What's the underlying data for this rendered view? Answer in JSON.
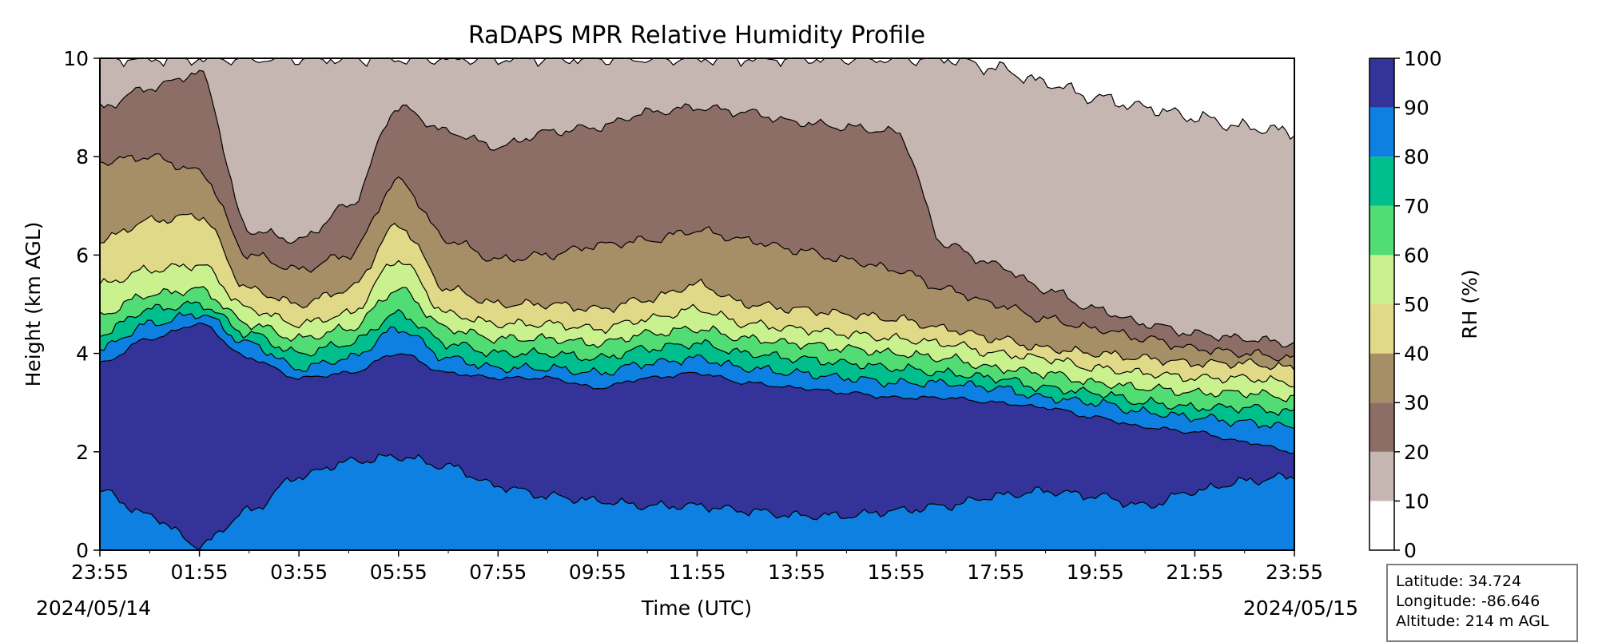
{
  "chart_data": {
    "type": "heatmap",
    "title": "RaDAPS MPR Relative Humidity Profile",
    "xlabel": "Time (UTC)",
    "ylabel": "Height (km AGL)",
    "x_ticks": [
      "23:55",
      "01:55",
      "03:55",
      "05:55",
      "07:55",
      "09:55",
      "11:55",
      "13:55",
      "15:55",
      "17:55",
      "19:55",
      "21:55",
      "23:55"
    ],
    "x_hours_per_major_tick": 2,
    "x_range_hours": [
      0,
      24
    ],
    "start_date": "2024/05/14",
    "end_date": "2024/05/15",
    "y_ticks": [
      0,
      2,
      4,
      6,
      8,
      10
    ],
    "ylim": [
      0,
      10
    ],
    "colorbar": {
      "label": "RH (%)",
      "ticks": [
        0,
        10,
        20,
        30,
        40,
        50,
        60,
        70,
        80,
        90,
        100
      ],
      "levels": [
        {
          "range": [
            0,
            10
          ],
          "color": "#ffffff"
        },
        {
          "range": [
            10,
            20
          ],
          "color": "#c6b6b2"
        },
        {
          "range": [
            20,
            30
          ],
          "color": "#8d6e66"
        },
        {
          "range": [
            30,
            40
          ],
          "color": "#a68f66"
        },
        {
          "range": [
            40,
            50
          ],
          "color": "#e0da88"
        },
        {
          "range": [
            50,
            60
          ],
          "color": "#c9f28e"
        },
        {
          "range": [
            60,
            70
          ],
          "color": "#51dc74"
        },
        {
          "range": [
            70,
            80
          ],
          "color": "#00bf8c"
        },
        {
          "range": [
            80,
            90
          ],
          "color": "#0d80e2"
        },
        {
          "range": [
            90,
            100
          ],
          "color": "#333399"
        }
      ]
    },
    "contour_tops_km": {
      "hours": [
        0,
        1,
        2,
        3,
        4,
        5,
        6,
        7,
        8,
        9,
        10,
        11,
        12,
        13,
        14,
        15,
        16,
        17,
        18,
        19,
        20,
        21,
        22,
        23,
        24
      ],
      "levels": [
        {
          "rh_above": 90,
          "tops": [
            3.8,
            4.3,
            4.6,
            3.9,
            3.5,
            3.6,
            4.0,
            3.6,
            3.5,
            3.5,
            3.3,
            3.5,
            3.6,
            3.4,
            3.3,
            3.2,
            3.1,
            3.1,
            3.0,
            2.9,
            2.7,
            2.5,
            2.4,
            2.2,
            2.0
          ]
        },
        {
          "rh_above": 80,
          "tops": [
            4.1,
            4.6,
            4.8,
            4.2,
            3.7,
            3.9,
            4.5,
            3.9,
            3.7,
            3.7,
            3.6,
            3.8,
            3.9,
            3.7,
            3.6,
            3.5,
            3.4,
            3.4,
            3.3,
            3.1,
            3.0,
            2.8,
            2.7,
            2.6,
            2.5
          ]
        },
        {
          "rh_above": 70,
          "tops": [
            4.4,
            4.9,
            5.0,
            4.4,
            4.0,
            4.2,
            4.8,
            4.2,
            4.0,
            4.0,
            3.9,
            4.1,
            4.2,
            4.0,
            3.9,
            3.8,
            3.7,
            3.6,
            3.5,
            3.3,
            3.2,
            3.0,
            2.9,
            2.9,
            2.8
          ]
        },
        {
          "rh_above": 60,
          "tops": [
            4.8,
            5.2,
            5.3,
            4.6,
            4.3,
            4.5,
            5.3,
            4.5,
            4.3,
            4.3,
            4.2,
            4.4,
            4.5,
            4.3,
            4.2,
            4.1,
            4.0,
            3.9,
            3.7,
            3.6,
            3.4,
            3.3,
            3.2,
            3.2,
            3.1
          ]
        },
        {
          "rh_above": 50,
          "tops": [
            5.4,
            5.7,
            5.8,
            4.9,
            4.6,
            4.8,
            5.9,
            4.8,
            4.6,
            4.6,
            4.5,
            4.7,
            4.9,
            4.6,
            4.5,
            4.4,
            4.3,
            4.2,
            4.0,
            3.9,
            3.7,
            3.6,
            3.5,
            3.5,
            3.4
          ]
        },
        {
          "rh_above": 40,
          "tops": [
            6.3,
            6.7,
            6.8,
            5.3,
            5.0,
            5.3,
            6.6,
            5.3,
            5.0,
            5.0,
            4.9,
            5.1,
            5.4,
            5.0,
            4.9,
            4.8,
            4.7,
            4.5,
            4.3,
            4.1,
            4.0,
            3.9,
            3.8,
            3.8,
            3.7
          ]
        },
        {
          "rh_above": 30,
          "tops": [
            7.9,
            8.0,
            7.7,
            6.0,
            5.7,
            6.0,
            7.5,
            6.3,
            5.9,
            6.0,
            6.2,
            6.3,
            6.5,
            6.3,
            6.1,
            5.9,
            5.7,
            5.3,
            5.0,
            4.7,
            4.5,
            4.3,
            4.1,
            4.0,
            3.9
          ]
        },
        {
          "rh_above": 20,
          "tops": [
            9.0,
            9.4,
            9.7,
            6.5,
            6.3,
            7.0,
            9.0,
            8.5,
            8.2,
            8.5,
            8.6,
            8.9,
            9.0,
            8.9,
            8.7,
            8.6,
            8.5,
            6.2,
            5.8,
            5.3,
            4.9,
            4.6,
            4.4,
            4.3,
            4.2
          ]
        },
        {
          "rh_above": 10,
          "tops": [
            10.0,
            10.0,
            10.0,
            10.0,
            10.0,
            10.0,
            10.0,
            10.0,
            10.0,
            10.0,
            10.0,
            10.0,
            10.0,
            10.0,
            10.0,
            10.0,
            10.0,
            10.0,
            9.8,
            9.5,
            9.2,
            9.0,
            8.8,
            8.6,
            8.5
          ]
        }
      ],
      "near_surface_band": {
        "rh": "80-90",
        "tops": [
          1.2,
          0.7,
          0.1,
          0.8,
          1.5,
          1.8,
          1.9,
          1.7,
          1.3,
          1.1,
          1.0,
          0.9,
          0.9,
          0.8,
          0.7,
          0.7,
          0.8,
          0.9,
          1.1,
          1.2,
          1.1,
          0.9,
          1.2,
          1.4,
          1.5
        ]
      }
    }
  },
  "station": {
    "latitude": "Latitude: 34.724",
    "longitude": "Longitude: -86.646",
    "altitude": "Altitude: 214 m AGL"
  }
}
